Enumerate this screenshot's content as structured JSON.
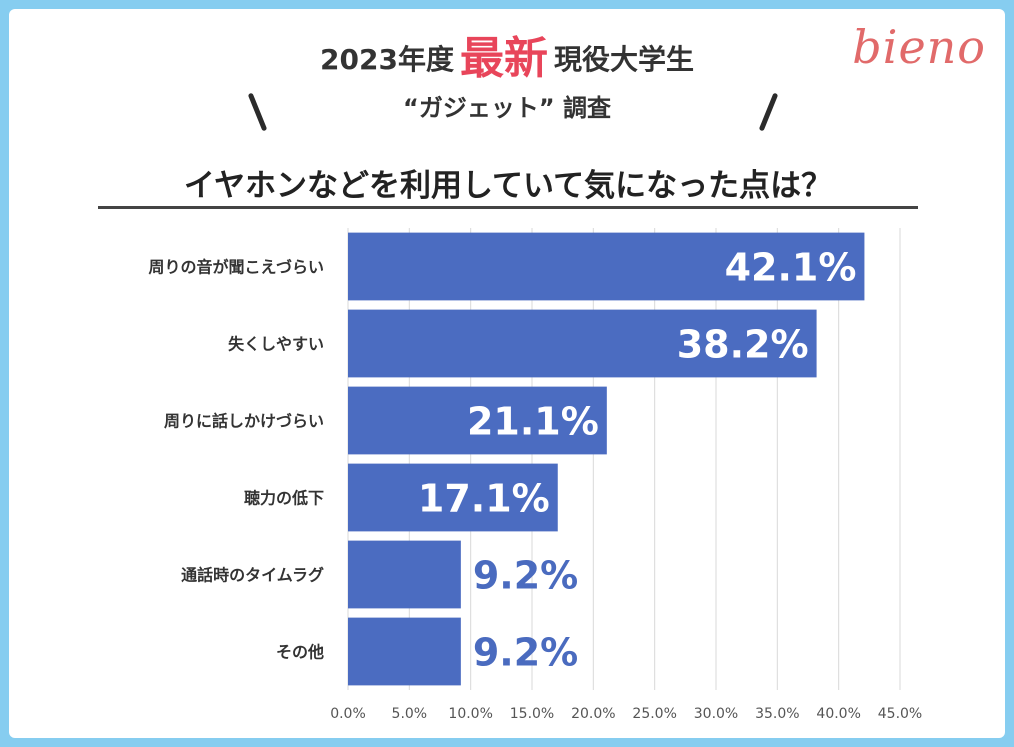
{
  "header": {
    "line1_prefix": "2023年度",
    "line1_accent": "最新",
    "line1_suffix": "現役大学生",
    "line2": "“ガジェット” 調査",
    "logo": "bieno"
  },
  "colors": {
    "background": "#86CDF0",
    "bar": "#4B6CC1",
    "accent": "#E8455A",
    "logo": "#E16A6A",
    "value_outside": "#4A6BBF"
  },
  "chart_data": {
    "type": "bar",
    "orientation": "horizontal",
    "title": "イヤホンなどを利用していて気になった点は？",
    "categories": [
      "周りの音が聞こえづらい",
      "失くしやすい",
      "周りに話しかけづらい",
      "聴力の低下",
      "通話時のタイムラグ",
      "その他"
    ],
    "values": [
      42.1,
      38.2,
      21.1,
      17.1,
      9.2,
      9.2
    ],
    "value_labels": [
      "42.1%",
      "38.2%",
      "21.1%",
      "17.1%",
      "9.2%",
      "9.2%"
    ],
    "xlim": [
      0,
      45
    ],
    "xticks": [
      "0.0%",
      "5.0%",
      "10.0%",
      "15.0%",
      "20.0%",
      "25.0%",
      "30.0%",
      "35.0%",
      "40.0%",
      "45.0%"
    ],
    "grid": true,
    "legend": "none"
  }
}
